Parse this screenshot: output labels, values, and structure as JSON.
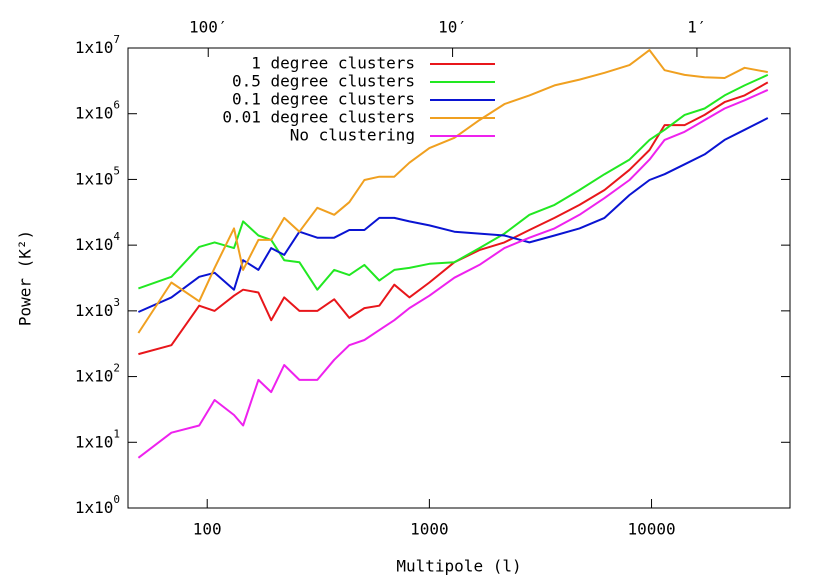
{
  "chart_data": {
    "type": "line",
    "xlabel": "Multipole (l)",
    "ylabel": "Power (K²)",
    "xlog": true,
    "ylog": true,
    "grid": false,
    "legend": "top-left",
    "xlim": [
      44,
      42000
    ],
    "x2lim": [
      213,
      0.416
    ],
    "ylim": [
      1,
      10000000
    ],
    "xticks": [
      100,
      1000,
      10000
    ],
    "x2ticks": [
      {
        "value": 100,
        "label": "100′"
      },
      {
        "value": 10,
        "label": "10′"
      },
      {
        "value": 1,
        "label": "1′"
      }
    ],
    "yticks": [
      {
        "value": 1,
        "label": "1x10",
        "exponent": "0"
      },
      {
        "value": 10,
        "label": "1x10",
        "exponent": "1"
      },
      {
        "value": 100,
        "label": "1x10",
        "exponent": "2"
      },
      {
        "value": 1000,
        "label": "1x10",
        "exponent": "3"
      },
      {
        "value": 10000,
        "label": "1x10",
        "exponent": "4"
      },
      {
        "value": 100000,
        "label": "1x10",
        "exponent": "5"
      },
      {
        "value": 1000000,
        "label": "1x10",
        "exponent": "6"
      },
      {
        "value": 10000000,
        "label": "1x10",
        "exponent": "7"
      }
    ],
    "x": [
      49,
      69,
      92,
      108,
      132,
      145,
      170,
      194,
      222,
      260,
      313,
      373,
      436,
      510,
      595,
      695,
      813,
      1000,
      1296,
      1680,
      2177,
      2820,
      3656,
      4740,
      6140,
      7960,
      9790,
      11450,
      14090,
      17340,
      21330,
      26240,
      33360
    ],
    "series": [
      {
        "name": "1 degree clusters",
        "color": "#e8161b",
        "values": [
          220,
          300,
          1200,
          1000,
          1700,
          2100,
          1900,
          720,
          1600,
          1000,
          1000,
          1500,
          780,
          1100,
          1200,
          2500,
          1600,
          2700,
          5500,
          8400,
          11000,
          17000,
          26000,
          41000,
          69000,
          140000,
          280000,
          670000,
          670000,
          960000,
          1500000,
          1900000,
          3000000
        ]
      },
      {
        "name": "0.5 degree clusters",
        "color": "#22e822",
        "values": [
          2200,
          3300,
          9400,
          11000,
          9000,
          23000,
          14000,
          12000,
          5900,
          5500,
          2100,
          4200,
          3500,
          5000,
          2900,
          4200,
          4500,
          5200,
          5500,
          9000,
          15000,
          29000,
          41000,
          69000,
          120000,
          200000,
          400000,
          570000,
          960000,
          1200000,
          1900000,
          2700000,
          3900000
        ]
      },
      {
        "name": "0.1 degree clusters",
        "color": "#0a14d2",
        "values": [
          960,
          1600,
          3300,
          3800,
          2100,
          5900,
          4200,
          9000,
          7100,
          16000,
          13000,
          13000,
          17000,
          17000,
          26000,
          26000,
          23000,
          20000,
          16000,
          15000,
          14000,
          11000,
          14000,
          18000,
          26000,
          58000,
          98000,
          120000,
          170000,
          240000,
          400000,
          570000,
          860000
        ]
      },
      {
        "name": "0.01 degree clusters",
        "color": "#f0a020",
        "values": [
          460,
          2700,
          1400,
          4500,
          18000,
          4200,
          12000,
          12000,
          26000,
          16000,
          37000,
          29000,
          45000,
          98000,
          110000,
          110000,
          180000,
          300000,
          430000,
          800000,
          1400000,
          1900000,
          2700000,
          3300000,
          4200000,
          5500000,
          9300000,
          4600000,
          3900000,
          3600000,
          3500000,
          5000000,
          4300000
        ]
      },
      {
        "name": "No clustering",
        "color": "#ee22ee",
        "values": [
          5.8,
          14,
          18,
          44,
          26,
          18,
          89,
          58,
          150,
          89,
          89,
          180,
          300,
          360,
          510,
          720,
          1100,
          1700,
          3200,
          5000,
          9000,
          13000,
          18000,
          29000,
          52000,
          98000,
          200000,
          400000,
          530000,
          800000,
          1200000,
          1600000,
          2300000
        ]
      }
    ]
  }
}
